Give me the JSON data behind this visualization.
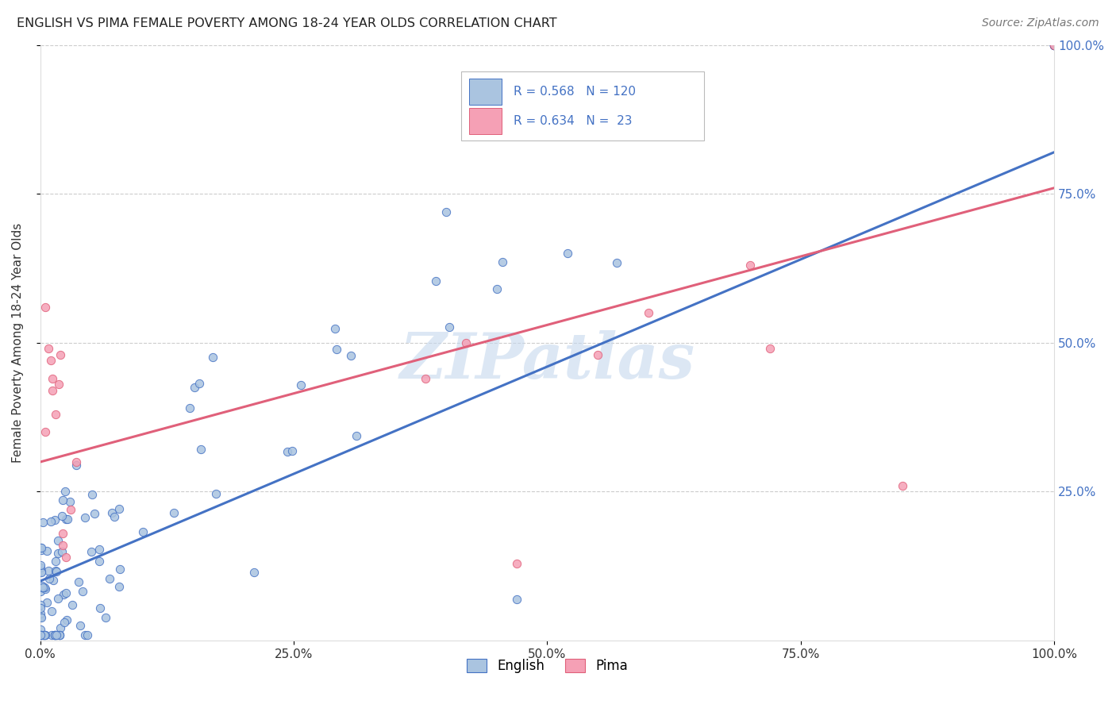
{
  "title": "ENGLISH VS PIMA FEMALE POVERTY AMONG 18-24 YEAR OLDS CORRELATION CHART",
  "source": "Source: ZipAtlas.com",
  "ylabel": "Female Poverty Among 18-24 Year Olds",
  "watermark": "ZIPatlas",
  "english_R": 0.568,
  "english_N": 120,
  "pima_R": 0.634,
  "pima_N": 23,
  "english_color": "#aac4e0",
  "pima_color": "#f5a0b5",
  "english_line_color": "#4472c4",
  "pima_line_color": "#e0607a",
  "legend_text_color": "#4472c4",
  "english_line_x0": 0.0,
  "english_line_y0": 0.1,
  "english_line_x1": 1.0,
  "english_line_y1": 0.82,
  "pima_line_x0": 0.0,
  "pima_line_y0": 0.3,
  "pima_line_x1": 1.0,
  "pima_line_y1": 0.76,
  "xlim": [
    0.0,
    1.0
  ],
  "ylim": [
    0.0,
    1.0
  ],
  "xticks": [
    0.0,
    0.25,
    0.5,
    0.75,
    1.0
  ],
  "xticklabels": [
    "0.0%",
    "25.0%",
    "50.0%",
    "75.0%",
    "100.0%"
  ],
  "right_yticks": [
    0.25,
    0.5,
    0.75,
    1.0
  ],
  "right_yticklabels": [
    "25.0%",
    "50.0%",
    "75.0%",
    "100.0%"
  ],
  "background_color": "#ffffff",
  "grid_color": "#cccccc",
  "grid_linestyle": "--"
}
